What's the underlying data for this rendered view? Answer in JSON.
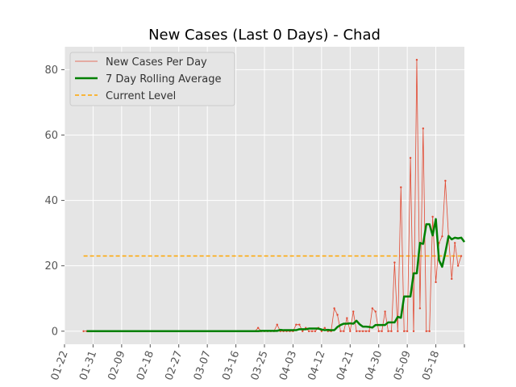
{
  "chart_data": {
    "type": "line",
    "title": "New Cases (Last 0 Days) - Chad",
    "xlabel": "",
    "ylabel": "",
    "x_ticks": [
      "01-22",
      "01-31",
      "02-09",
      "02-18",
      "02-27",
      "03-07",
      "03-16",
      "03-25",
      "04-03",
      "04-12",
      "04-21",
      "04-30",
      "05-09",
      "05-18"
    ],
    "y_ticks": [
      "0",
      "20",
      "40",
      "60",
      "80"
    ],
    "xlim": [
      "2020-01-22",
      "2020-05-27"
    ],
    "ylim": [
      -4,
      87
    ],
    "grid": true,
    "legend_placement": "top-left",
    "start_date": "2020-01-28",
    "series": [
      {
        "name": "New Cases Per Day",
        "style": "thin-line-with-point-markers",
        "color": "#e24a33",
        "values": [
          0,
          0,
          0,
          0,
          0,
          0,
          0,
          0,
          0,
          0,
          0,
          0,
          0,
          0,
          0,
          0,
          0,
          0,
          0,
          0,
          0,
          0,
          0,
          0,
          0,
          0,
          0,
          0,
          0,
          0,
          0,
          0,
          0,
          0,
          0,
          0,
          0,
          0,
          0,
          0,
          0,
          0,
          0,
          0,
          0,
          0,
          0,
          0,
          0,
          0,
          0,
          0,
          0,
          0,
          0,
          1,
          0,
          0,
          0,
          0,
          0,
          2,
          0,
          0,
          0,
          0,
          0,
          2,
          2,
          0,
          1,
          0,
          0,
          0,
          1,
          0,
          1,
          0,
          0,
          7,
          5,
          0,
          0,
          4,
          0,
          6,
          0,
          0,
          0,
          0,
          0,
          7,
          6,
          0,
          0,
          6,
          0,
          0,
          21,
          0,
          44,
          0,
          0,
          53,
          0,
          83,
          7,
          62,
          0,
          0,
          35,
          15,
          27,
          29,
          46,
          29,
          16,
          27,
          20,
          23
        ]
      },
      {
        "name": "7 Day Rolling Average",
        "style": "thick-line",
        "color": "#008000",
        "values": [
          0,
          0,
          0,
          0,
          0,
          0,
          0,
          0,
          0,
          0,
          0,
          0,
          0,
          0,
          0,
          0,
          0,
          0,
          0,
          0,
          0,
          0,
          0,
          0,
          0,
          0,
          0,
          0,
          0,
          0,
          0,
          0,
          0,
          0,
          0,
          0,
          0,
          0,
          0,
          0,
          0,
          0,
          0,
          0,
          0,
          0,
          0,
          0,
          0,
          0,
          0,
          0,
          0,
          0,
          0,
          0.1,
          0.1,
          0.1,
          0.1,
          0.1,
          0.1,
          0.4,
          0.3,
          0.3,
          0.3,
          0.3,
          0.3,
          0.6,
          0.6,
          0.6,
          0.8,
          0.8,
          0.8,
          0.8,
          0.5,
          0.3,
          0.4,
          0.3,
          0.3,
          1.3,
          1.9,
          2.3,
          2.3,
          2.4,
          2.3,
          3.2,
          2.1,
          1.4,
          1.4,
          1.3,
          1.1,
          1.9,
          1.9,
          1.9,
          1.9,
          2.7,
          2.7,
          2.7,
          4.4,
          4.1,
          10.6,
          10.6,
          10.6,
          17.7,
          17.7,
          27,
          26.7,
          32.7,
          32.7,
          29.3,
          34.3,
          21.7,
          19.7,
          24.1,
          29.1,
          28.1,
          28.6,
          28.4,
          28.6,
          27.3
        ]
      },
      {
        "name": "Current Level",
        "style": "dashed-horizontal",
        "color": "#ffa500",
        "value": 23
      }
    ]
  }
}
